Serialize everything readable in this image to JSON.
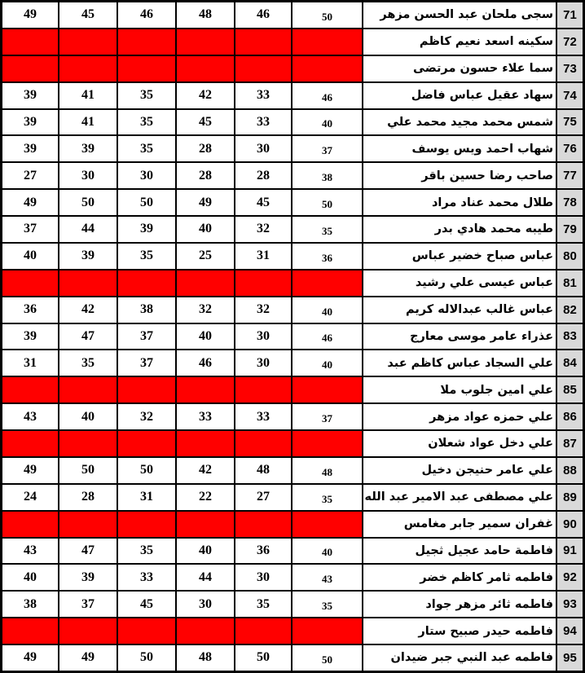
{
  "colors": {
    "red_highlight": "#ff0000",
    "row_number_bg": "#d9d9d9",
    "border": "#000000",
    "text": "#000000",
    "cell_bg": "#ffffff"
  },
  "table": {
    "rows": [
      {
        "no": "71",
        "name": "سجى ملحان عبد الحسن مزهر",
        "red": false,
        "scores": [
          "49",
          "45",
          "46",
          "48",
          "46",
          "50"
        ]
      },
      {
        "no": "72",
        "name": "سكينه اسعد نعيم كاظم",
        "red": true,
        "scores": [
          "",
          "",
          "",
          "",
          "",
          ""
        ]
      },
      {
        "no": "73",
        "name": "سما علاء حسون مرتضى",
        "red": true,
        "scores": [
          "",
          "",
          "",
          "",
          "",
          ""
        ]
      },
      {
        "no": "74",
        "name": "سهاد عقيل عباس فاضل",
        "red": false,
        "scores": [
          "39",
          "41",
          "35",
          "42",
          "33",
          "46"
        ]
      },
      {
        "no": "75",
        "name": "شمس محمد مجيد محمد علي",
        "red": false,
        "scores": [
          "39",
          "41",
          "35",
          "45",
          "33",
          "40"
        ]
      },
      {
        "no": "76",
        "name": "شهاب احمد ويس يوسف",
        "red": false,
        "scores": [
          "39",
          "39",
          "35",
          "28",
          "30",
          "37"
        ]
      },
      {
        "no": "77",
        "name": "صاحب رضا حسين باقر",
        "red": false,
        "scores": [
          "27",
          "30",
          "30",
          "28",
          "28",
          "38"
        ]
      },
      {
        "no": "78",
        "name": "طلال محمد عناد مراد",
        "red": false,
        "scores": [
          "49",
          "50",
          "50",
          "49",
          "45",
          "50"
        ]
      },
      {
        "no": "79",
        "name": "طيبه محمد هادي بدر",
        "red": false,
        "scores": [
          "37",
          "44",
          "39",
          "40",
          "32",
          "35"
        ]
      },
      {
        "no": "80",
        "name": "عباس صباح خضير عباس",
        "red": false,
        "scores": [
          "40",
          "39",
          "35",
          "25",
          "31",
          "36"
        ]
      },
      {
        "no": "81",
        "name": "عباس عيسى علي رشيد",
        "red": true,
        "scores": [
          "",
          "",
          "",
          "",
          "",
          ""
        ]
      },
      {
        "no": "82",
        "name": "عباس غالب عبدالاله كريم",
        "red": false,
        "scores": [
          "36",
          "42",
          "38",
          "32",
          "32",
          "40"
        ]
      },
      {
        "no": "83",
        "name": "عذراء عامر موسى معارج",
        "red": false,
        "scores": [
          "39",
          "47",
          "37",
          "40",
          "30",
          "46"
        ]
      },
      {
        "no": "84",
        "name": "علي السجاد عباس كاظم عبد",
        "red": false,
        "scores": [
          "31",
          "35",
          "37",
          "46",
          "30",
          "40"
        ]
      },
      {
        "no": "85",
        "name": "علي امين جلوب ملا",
        "red": true,
        "scores": [
          "",
          "",
          "",
          "",
          "",
          ""
        ]
      },
      {
        "no": "86",
        "name": "علي حمزه عواد مزهر",
        "red": false,
        "scores": [
          "43",
          "40",
          "32",
          "33",
          "33",
          "37"
        ]
      },
      {
        "no": "87",
        "name": "علي دخل عواد شعلان",
        "red": true,
        "scores": [
          "",
          "",
          "",
          "",
          "",
          ""
        ]
      },
      {
        "no": "88",
        "name": "علي عامر حنيجن دخيل",
        "red": false,
        "scores": [
          "49",
          "50",
          "50",
          "42",
          "48",
          "48"
        ]
      },
      {
        "no": "89",
        "name": "علي مصطفى عبد الامير عبد الله",
        "red": false,
        "scores": [
          "24",
          "28",
          "31",
          "22",
          "27",
          "35"
        ]
      },
      {
        "no": "90",
        "name": "غفران سمير جابر مغامس",
        "red": true,
        "scores": [
          "",
          "",
          "",
          "",
          "",
          ""
        ]
      },
      {
        "no": "91",
        "name": "فاطمة حامد عجيل ثجيل",
        "red": false,
        "scores": [
          "43",
          "47",
          "35",
          "40",
          "36",
          "40"
        ]
      },
      {
        "no": "92",
        "name": "فاطمه ثامر كاظم خضر",
        "red": false,
        "scores": [
          "40",
          "39",
          "33",
          "44",
          "30",
          "43"
        ]
      },
      {
        "no": "93",
        "name": "فاطمه ثائر مزهر جواد",
        "red": false,
        "scores": [
          "38",
          "37",
          "45",
          "30",
          "35",
          "35"
        ]
      },
      {
        "no": "94",
        "name": "فاطمه حيدر صبيح ستار",
        "red": true,
        "scores": [
          "",
          "",
          "",
          "",
          "",
          ""
        ]
      },
      {
        "no": "95",
        "name": "فاطمه عبد النبي جبر ضيدان",
        "red": false,
        "scores": [
          "49",
          "49",
          "50",
          "48",
          "50",
          "50"
        ]
      }
    ]
  }
}
